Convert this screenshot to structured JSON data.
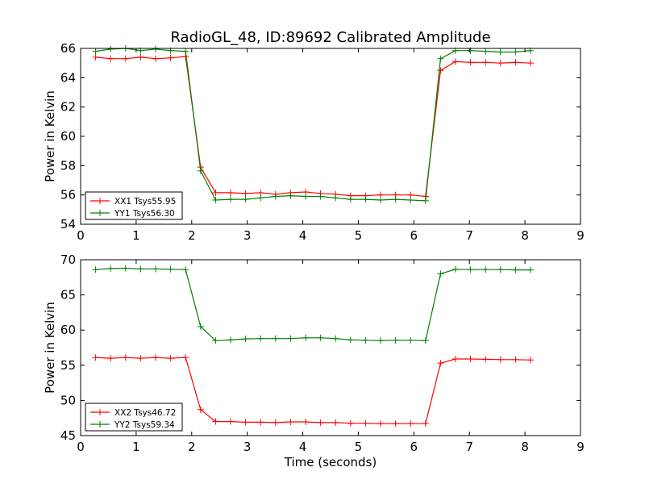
{
  "figure_title": "RadioGL_48, ID:89692 Calibrated Amplitude",
  "colors": {
    "xx": "#ff0000",
    "yy": "#008000",
    "axes": "#000000",
    "background": "#ffffff"
  },
  "chart_data": [
    {
      "type": "line",
      "title": "RadioGL_48, ID:89692 Calibrated Amplitude",
      "xlabel": "",
      "ylabel": "Power in Kelvin",
      "xlim": [
        0,
        9
      ],
      "ylim": [
        54,
        66
      ],
      "xticks": [
        0,
        1,
        2,
        3,
        4,
        5,
        6,
        7,
        8,
        9
      ],
      "yticks": [
        54,
        56,
        58,
        60,
        62,
        64,
        66
      ],
      "grid": false,
      "legend_position": "lower-left",
      "marker": "+",
      "x": [
        0.27,
        0.54,
        0.81,
        1.08,
        1.35,
        1.62,
        1.89,
        2.16,
        2.43,
        2.7,
        2.97,
        3.24,
        3.51,
        3.78,
        4.05,
        4.32,
        4.59,
        4.86,
        5.13,
        5.4,
        5.67,
        5.94,
        6.21,
        6.48,
        6.75,
        7.02,
        7.29,
        7.56,
        7.83,
        8.1
      ],
      "series": [
        {
          "name": "XX1 Tsys55.95",
          "color": "#ff0000",
          "values": [
            65.4,
            65.3,
            65.3,
            65.4,
            65.3,
            65.35,
            65.45,
            57.9,
            56.15,
            56.15,
            56.1,
            56.15,
            56.05,
            56.15,
            56.2,
            56.1,
            56.05,
            55.95,
            55.95,
            56.0,
            56.0,
            56.0,
            55.9,
            64.5,
            65.1,
            65.05,
            65.05,
            65.0,
            65.05,
            65.0
          ]
        },
        {
          "name": "YY1 Tsys56.30",
          "color": "#008000",
          "values": [
            65.8,
            65.95,
            66.0,
            65.85,
            65.95,
            65.85,
            65.8,
            57.65,
            55.65,
            55.7,
            55.7,
            55.8,
            55.9,
            55.95,
            55.9,
            55.9,
            55.8,
            55.7,
            55.7,
            55.65,
            55.7,
            55.65,
            55.6,
            65.3,
            65.85,
            65.85,
            65.8,
            65.75,
            65.75,
            65.85
          ]
        }
      ]
    },
    {
      "type": "line",
      "title": "",
      "xlabel": "Time (seconds)",
      "ylabel": "Power in Kelvin",
      "xlim": [
        0,
        9
      ],
      "ylim": [
        45,
        70
      ],
      "xticks": [
        0,
        1,
        2,
        3,
        4,
        5,
        6,
        7,
        8,
        9
      ],
      "yticks": [
        45,
        50,
        55,
        60,
        65,
        70
      ],
      "grid": false,
      "legend_position": "lower-left",
      "marker": "+",
      "x": [
        0.27,
        0.54,
        0.81,
        1.08,
        1.35,
        1.62,
        1.89,
        2.16,
        2.43,
        2.7,
        2.97,
        3.24,
        3.51,
        3.78,
        4.05,
        4.32,
        4.59,
        4.86,
        5.13,
        5.4,
        5.67,
        5.94,
        6.21,
        6.48,
        6.75,
        7.02,
        7.29,
        7.56,
        7.83,
        8.1
      ],
      "series": [
        {
          "name": "XX2 Tsys46.72",
          "color": "#ff0000",
          "values": [
            56.1,
            56.0,
            56.1,
            56.0,
            56.1,
            56.0,
            56.1,
            48.7,
            47.0,
            47.0,
            46.9,
            46.9,
            46.85,
            46.95,
            46.95,
            46.85,
            46.85,
            46.75,
            46.75,
            46.7,
            46.7,
            46.7,
            46.7,
            55.3,
            55.9,
            55.9,
            55.85,
            55.8,
            55.8,
            55.75
          ]
        },
        {
          "name": "YY2 Tsys59.34",
          "color": "#008000",
          "values": [
            68.6,
            68.75,
            68.8,
            68.7,
            68.7,
            68.65,
            68.6,
            60.5,
            58.5,
            58.6,
            58.75,
            58.8,
            58.8,
            58.8,
            58.9,
            58.9,
            58.8,
            58.6,
            58.55,
            58.5,
            58.55,
            58.55,
            58.5,
            68.0,
            68.65,
            68.6,
            68.6,
            68.6,
            68.55,
            68.55
          ]
        }
      ]
    }
  ]
}
